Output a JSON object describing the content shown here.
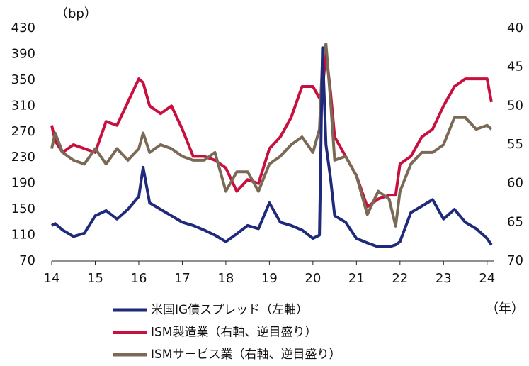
{
  "chart_data": {
    "type": "line",
    "y_label": "（bp）",
    "x_label": "（年）",
    "x": [
      14.0,
      14.08,
      14.25,
      14.5,
      14.75,
      15.0,
      15.25,
      15.5,
      15.75,
      16.0,
      16.1,
      16.25,
      16.5,
      16.75,
      17.0,
      17.25,
      17.5,
      17.75,
      18.0,
      18.25,
      18.5,
      18.75,
      19.0,
      19.25,
      19.5,
      19.75,
      20.0,
      20.15,
      20.22,
      20.3,
      20.4,
      20.5,
      20.75,
      21.0,
      21.25,
      21.5,
      21.75,
      21.9,
      22.0,
      22.25,
      22.5,
      22.75,
      23.0,
      23.25,
      23.5,
      23.75,
      24.0,
      24.1
    ],
    "xlim": [
      14,
      24.15
    ],
    "xticks": [
      14,
      15,
      16,
      17,
      18,
      19,
      20,
      21,
      22,
      23,
      24
    ],
    "ylim": [
      70,
      430
    ],
    "yticks": [
      70,
      110,
      150,
      190,
      230,
      270,
      310,
      350,
      390,
      430
    ],
    "y2lim": [
      40,
      70
    ],
    "y2ticks": [
      40,
      45,
      50,
      55,
      60,
      65,
      70
    ],
    "y2_reversed": true,
    "series": [
      {
        "name": "米国IG債スプレッド（左軸）",
        "color": "#1f2a7a",
        "values": [
          125,
          128,
          118,
          108,
          113,
          140,
          148,
          135,
          150,
          170,
          215,
          160,
          150,
          140,
          130,
          125,
          118,
          110,
          100,
          112,
          125,
          120,
          160,
          130,
          125,
          118,
          105,
          110,
          400,
          250,
          200,
          140,
          130,
          105,
          98,
          92,
          92,
          95,
          100,
          145,
          155,
          165,
          135,
          150,
          130,
          120,
          105,
          95
        ]
      },
      {
        "name": "ISM製造業（右軸、逆目盛り）",
        "color": "#c8103e",
        "axis": "y2",
        "values": [
          52.5,
          54.5,
          56,
          55,
          55.5,
          56,
          52,
          52.5,
          49.5,
          46.5,
          47,
          50,
          51,
          50,
          53,
          56.5,
          56.5,
          57,
          58,
          61,
          59.5,
          60,
          55.5,
          54,
          51.5,
          47.5,
          47.5,
          49,
          48,
          43,
          48,
          54,
          56.5,
          59,
          63,
          62,
          61.5,
          61.5,
          57.5,
          56.5,
          54,
          53,
          50,
          47.5,
          46.5,
          46.5,
          46.5,
          49.5
        ]
      },
      {
        "name": "ISMサービス業（右軸、逆目盛り）",
        "color": "#7a6a55",
        "axis": "y2",
        "values": [
          55.5,
          53.5,
          56,
          57,
          57.5,
          55.5,
          57.5,
          55.5,
          57,
          55.5,
          53.5,
          56,
          55,
          55.5,
          56.5,
          57,
          57,
          56,
          61,
          58.5,
          58.5,
          61,
          57.5,
          56.5,
          55,
          54,
          56,
          53,
          44,
          42,
          49,
          57,
          56.5,
          59,
          64,
          61,
          62,
          65.5,
          61,
          57.5,
          56,
          56,
          55,
          51.5,
          51.5,
          53,
          52.5,
          53
        ]
      }
    ]
  }
}
